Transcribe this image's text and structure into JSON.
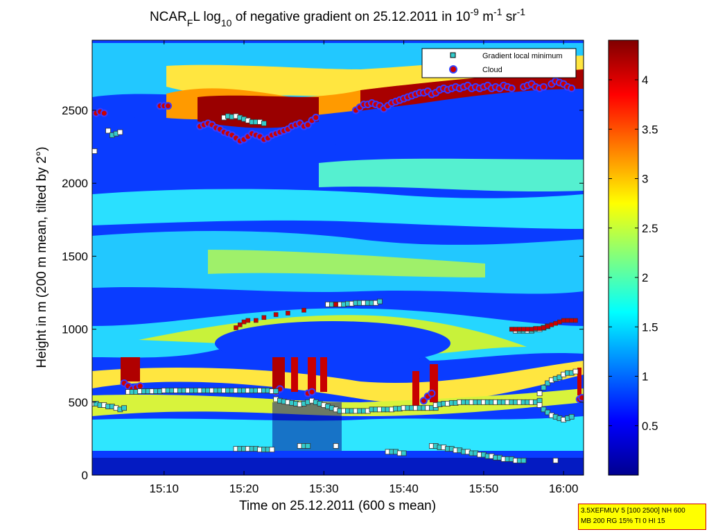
{
  "chart_data": {
    "type": "heatmap",
    "title": {
      "pre": "NCAR",
      "sub1": "F",
      "mid": "L log",
      "sub2": "10",
      "post1": " of negative gradient on 25.12.2011 in 10",
      "sup1": "-9",
      "post2": " m",
      "sup2": "-1",
      "post3": " sr",
      "sup3": "-1"
    },
    "xlabel": "Time on 25.12.2011 (600 s mean)",
    "ylabel": "Height in m (200 m mean, tilted by 2°)",
    "x_ticks": [
      "15:10",
      "15:20",
      "15:30",
      "15:40",
      "15:50",
      "16:00"
    ],
    "x_tick_values": [
      10,
      20,
      30,
      40,
      50,
      60
    ],
    "xlim": [
      1,
      62.5
    ],
    "y_ticks": [
      0,
      500,
      1000,
      1500,
      2000,
      2500
    ],
    "ylim": [
      0,
      2980
    ],
    "colorbar": {
      "ticks": [
        0.5,
        1,
        1.5,
        2,
        2.5,
        3,
        3.5,
        4
      ],
      "tick_labels": [
        "0.5",
        "1",
        "1.5",
        "2",
        "2.5",
        "3",
        "3.5",
        "4"
      ],
      "range": [
        0,
        4.4
      ],
      "colormap": "jet"
    },
    "legend": {
      "placement": "top-right",
      "entries": [
        {
          "label": "Gradient local minimum",
          "marker": "square",
          "color": "#33cccc"
        },
        {
          "label": "Cloud",
          "marker": "circle",
          "color": "#cc0000"
        }
      ]
    },
    "series": [
      {
        "name": "Cloud",
        "segments": [
          {
            "x": [
              1.5,
              2,
              2.5
            ],
            "y": [
              2480,
              2490,
              2480
            ]
          },
          {
            "x": [
              9.5,
              10,
              10.5
            ],
            "y": [
              2530,
              2530,
              2530
            ]
          },
          {
            "x": [
              14.5,
              15,
              15.5,
              16,
              16.5,
              17,
              17.5,
              18,
              18.5,
              19,
              19.5,
              20,
              20.5,
              21,
              21.5,
              22,
              22.5,
              23,
              23.5,
              24,
              24.5,
              25,
              25.5,
              26,
              26.5,
              27,
              27.5,
              28,
              28.5,
              29
            ],
            "y": [
              2390,
              2400,
              2410,
              2400,
              2380,
              2370,
              2350,
              2340,
              2330,
              2310,
              2290,
              2300,
              2320,
              2340,
              2330,
              2320,
              2300,
              2310,
              2330,
              2340,
              2350,
              2360,
              2370,
              2390,
              2400,
              2410,
              2390,
              2400,
              2430,
              2450
            ]
          },
          {
            "x": [
              34,
              34.5,
              35,
              35.5,
              36,
              36.5,
              37,
              37.5,
              38,
              38.5,
              39,
              39.5,
              40,
              40.5,
              41,
              41.5,
              42,
              42.5,
              43,
              43.5,
              44,
              44.5,
              45,
              45.5,
              46,
              46.5,
              47,
              47.5,
              48,
              48.5,
              49,
              49.5,
              50,
              50.5,
              51,
              51.5,
              52,
              52.5,
              53,
              53.5
            ],
            "y": [
              2500,
              2520,
              2540,
              2540,
              2550,
              2540,
              2530,
              2510,
              2530,
              2550,
              2560,
              2570,
              2580,
              2590,
              2600,
              2610,
              2620,
              2620,
              2630,
              2610,
              2620,
              2640,
              2650,
              2640,
              2650,
              2660,
              2650,
              2660,
              2670,
              2650,
              2660,
              2650,
              2660,
              2670,
              2650,
              2660,
              2650,
              2670,
              2660,
              2650
            ]
          },
          {
            "x": [
              55,
              55.5,
              56,
              56.5,
              57,
              57.5
            ],
            "y": [
              2660,
              2670,
              2680,
              2660,
              2650,
              2660
            ]
          },
          {
            "x": [
              58.5,
              59,
              59.5,
              60,
              60.5,
              61
            ],
            "y": [
              2680,
              2700,
              2690,
              2680,
              2660,
              2650
            ]
          },
          {
            "x": [
              5,
              5.5,
              6,
              6.5,
              7
            ],
            "y": [
              630,
              610,
              590,
              600,
              610
            ]
          },
          {
            "x": [
              24,
              24.5
            ],
            "y": [
              570,
              590
            ]
          },
          {
            "x": [
              28,
              28.5
            ],
            "y": [
              560,
              570
            ]
          },
          {
            "x": [
              42.5,
              43,
              43.5
            ],
            "y": [
              510,
              540,
              560
            ]
          },
          {
            "x": [
              62,
              62.3
            ],
            "y": [
              520,
              530
            ]
          }
        ]
      },
      {
        "name": "Gradient local minimum",
        "segments": [
          {
            "x": [
              1,
              1.5,
              2,
              2.5,
              3,
              3.5,
              4,
              4.5,
              5
            ],
            "y": [
              490,
              490,
              480,
              480,
              470,
              470,
              460,
              450,
              460
            ]
          },
          {
            "x": [
              5.5,
              6,
              6.5,
              7,
              7.5,
              8,
              8.5,
              9,
              9.5,
              10,
              10.5,
              11,
              11.5,
              12,
              12.5,
              13,
              13.5,
              14,
              14.5,
              15,
              15.5,
              16,
              16.5,
              17,
              17.5,
              18,
              18.5,
              19,
              19.5,
              20,
              20.5,
              21,
              21.5,
              22,
              22.5,
              23,
              23.5,
              24
            ],
            "y": [
              570,
              570,
              570,
              575,
              575,
              575,
              575,
              575,
              575,
              580,
              580,
              580,
              580,
              580,
              580,
              580,
              580,
              580,
              580,
              580,
              580,
              580,
              580,
              580,
              580,
              580,
              580,
              580,
              580,
              580,
              580,
              580,
              580,
              580,
              580,
              580,
              575,
              575
            ]
          },
          {
            "x": [
              24,
              24.5,
              25,
              25.5,
              26,
              26.5,
              27,
              27.5,
              28,
              28.5,
              29,
              29.5,
              30,
              30.5,
              31,
              31.5,
              32
            ],
            "y": [
              520,
              510,
              505,
              500,
              495,
              490,
              485,
              490,
              500,
              510,
              500,
              490,
              480,
              470,
              460,
              450,
              440
            ]
          },
          {
            "x": [
              32.5,
              33,
              33.5,
              34,
              34.5,
              35,
              35.5,
              36,
              36.5,
              37,
              37.5,
              38,
              38.5,
              39,
              39.5,
              40,
              40.5,
              41,
              41.5,
              42,
              42.5,
              43,
              43.5,
              44
            ],
            "y": [
              440,
              440,
              440,
              440,
              440,
              440,
              440,
              450,
              450,
              450,
              450,
              450,
              450,
              455,
              455,
              460,
              460,
              460,
              460,
              460,
              460,
              460,
              460,
              460
            ]
          },
          {
            "x": [
              44,
              44.5,
              45,
              45.5,
              46,
              46.5,
              47,
              47.5,
              48,
              48.5,
              49,
              49.5,
              50,
              50.5,
              51,
              51.5,
              52,
              52.5,
              53,
              53.5,
              54,
              54.5,
              55,
              55.5,
              56,
              56.5,
              57
            ],
            "y": [
              480,
              485,
              490,
              490,
              495,
              495,
              500,
              500,
              500,
              500,
              500,
              500,
              500,
              500,
              500,
              500,
              500,
              500,
              500,
              500,
              500,
              500,
              500,
              500,
              500,
              500,
              510
            ]
          },
          {
            "x": [
              57,
              57.5,
              58,
              58.5,
              59,
              59.5,
              60,
              60.5,
              61
            ],
            "y": [
              480,
              450,
              430,
              410,
              400,
              390,
              380,
              390,
              400
            ]
          },
          {
            "x": [
              57,
              57.5,
              58,
              58.5,
              59,
              59.5,
              60,
              60.5,
              61,
              61.5
            ],
            "y": [
              560,
              600,
              630,
              650,
              660,
              670,
              690,
              700,
              700,
              710
            ]
          },
          {
            "x": [
              19,
              19.5,
              20,
              20.5,
              21,
              21.5,
              22,
              22.5,
              23,
              23.5
            ],
            "y": [
              180,
              180,
              180,
              180,
              180,
              180,
              175,
              175,
              175,
              175
            ]
          },
          {
            "x": [
              27,
              27.5,
              28
            ],
            "y": [
              200,
              200,
              200
            ]
          },
          {
            "x": [
              31.5
            ],
            "y": [
              200
            ]
          },
          {
            "x": [
              38,
              38.5,
              39,
              39.5,
              40
            ],
            "y": [
              160,
              160,
              160,
              150,
              150
            ]
          },
          {
            "x": [
              43.5,
              44,
              44.5,
              45,
              45.5,
              46,
              46.5,
              47,
              47.5,
              48,
              48.5,
              49,
              49.5,
              50,
              50.5,
              51,
              51.5,
              52,
              52.5,
              53,
              53.5,
              54,
              54.5,
              55
            ],
            "y": [
              200,
              200,
              190,
              190,
              180,
              180,
              170,
              170,
              160,
              160,
              150,
              150,
              140,
              140,
              130,
              130,
              120,
              120,
              110,
              110,
              110,
              100,
              100,
              100
            ]
          },
          {
            "x": [
              59
            ],
            "y": [
              100
            ]
          },
          {
            "x": [
              1.3
            ],
            "y": [
              2220
            ]
          },
          {
            "x": [
              3,
              3.5,
              4,
              4.5
            ],
            "y": [
              2360,
              2330,
              2340,
              2350
            ]
          },
          {
            "x": [
              17.5,
              18,
              18.5,
              19,
              19.5,
              20,
              20.5,
              21,
              21.5,
              22,
              22.5
            ],
            "y": [
              2450,
              2460,
              2455,
              2460,
              2450,
              2440,
              2430,
              2420,
              2420,
              2420,
              2410
            ]
          },
          {
            "x": [
              30.5,
              31,
              31.5,
              32,
              32.5,
              33,
              33.5,
              34,
              34.5,
              35,
              35.5,
              36,
              36.5,
              37
            ],
            "y": [
              1170,
              1170,
              1170,
              1170,
              1170,
              1175,
              1175,
              1180,
              1180,
              1180,
              1180,
              1180,
              1180,
              1190
            ]
          },
          {
            "x": [
              54,
              54.5,
              55,
              55.5,
              56,
              56.5,
              57,
              57.5,
              58
            ],
            "y": [
              990,
              990,
              990,
              990,
              990,
              1000,
              1000,
              1010,
              1020
            ]
          }
        ]
      },
      {
        "name": "Upper layer marks",
        "segments": [
          {
            "x": [
              19,
              19.5,
              20,
              20.5,
              21.5,
              22.5,
              24,
              25.5,
              27.5,
              31.5
            ],
            "y": [
              1010,
              1030,
              1050,
              1060,
              1060,
              1080,
              1100,
              1110,
              1130,
              1170
            ]
          },
          {
            "x": [
              53.5,
              54,
              54.5,
              55,
              55.5,
              56,
              56.5,
              57,
              57.5,
              58,
              58.5,
              59,
              59.5,
              60,
              60.5,
              61,
              61.5
            ],
            "y": [
              1000,
              1000,
              1000,
              1000,
              1000,
              1000,
              1005,
              1005,
              1010,
              1020,
              1030,
              1040,
              1050,
              1060,
              1060,
              1060,
              1060
            ]
          }
        ]
      }
    ]
  },
  "info_box": {
    "line1": "3.5XEFMUV 5 [100 2500] NH 600",
    "line2": "MB 200 RG 15% TI 0 HI 15"
  }
}
